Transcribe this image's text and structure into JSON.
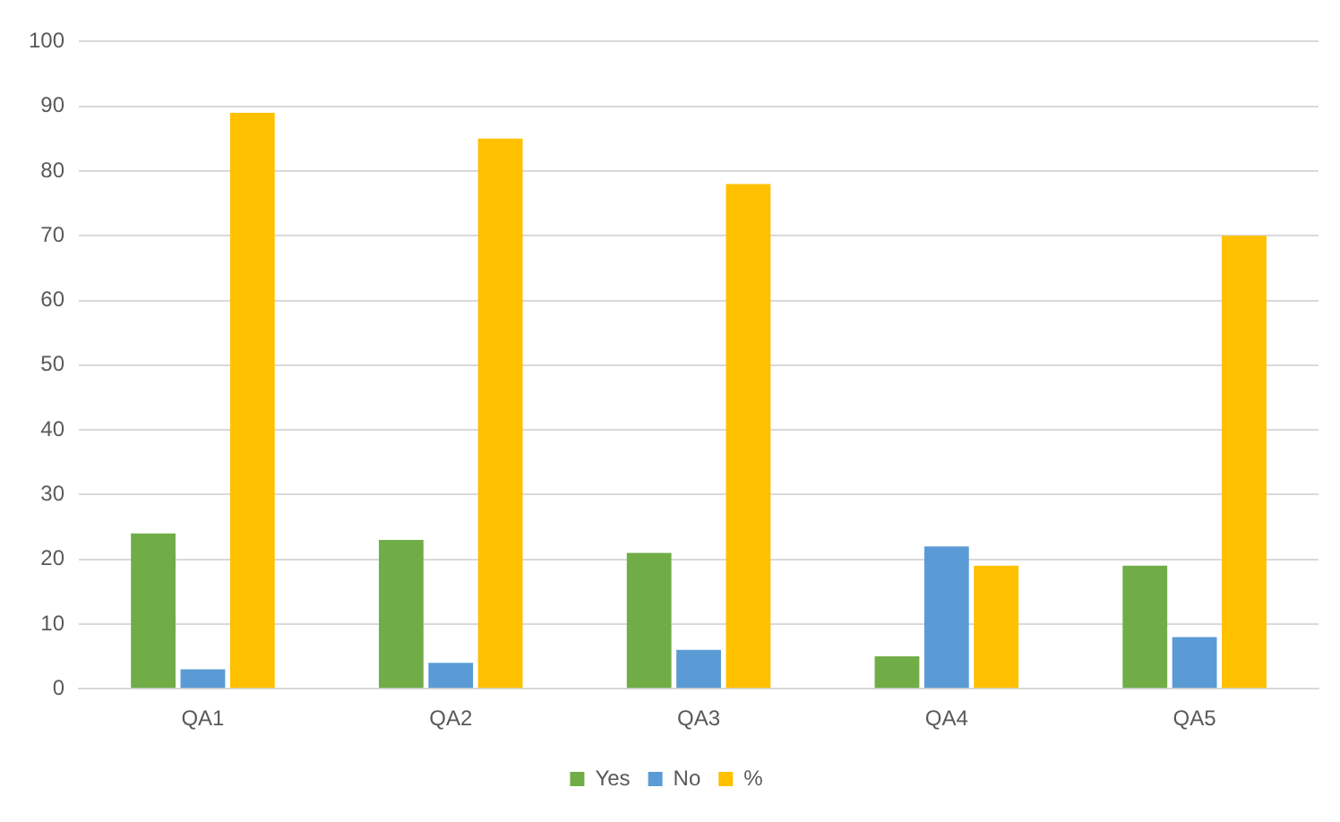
{
  "chart_data": {
    "type": "bar",
    "categories": [
      "QA1",
      "QA2",
      "QA3",
      "QA4",
      "QA5"
    ],
    "series": [
      {
        "name": "Yes",
        "color": "#70ad47",
        "values": [
          24,
          23,
          21,
          5,
          19
        ]
      },
      {
        "name": "No",
        "color": "#5b9bd5",
        "values": [
          3,
          4,
          6,
          22,
          8
        ]
      },
      {
        "name": "%",
        "color": "#ffc000",
        "values": [
          89,
          85,
          78,
          19,
          70
        ]
      }
    ],
    "ylim": [
      0,
      100
    ],
    "yticks": [
      0,
      10,
      20,
      30,
      40,
      50,
      60,
      70,
      80,
      90,
      100
    ],
    "grid": "y",
    "legend": "bottom"
  }
}
